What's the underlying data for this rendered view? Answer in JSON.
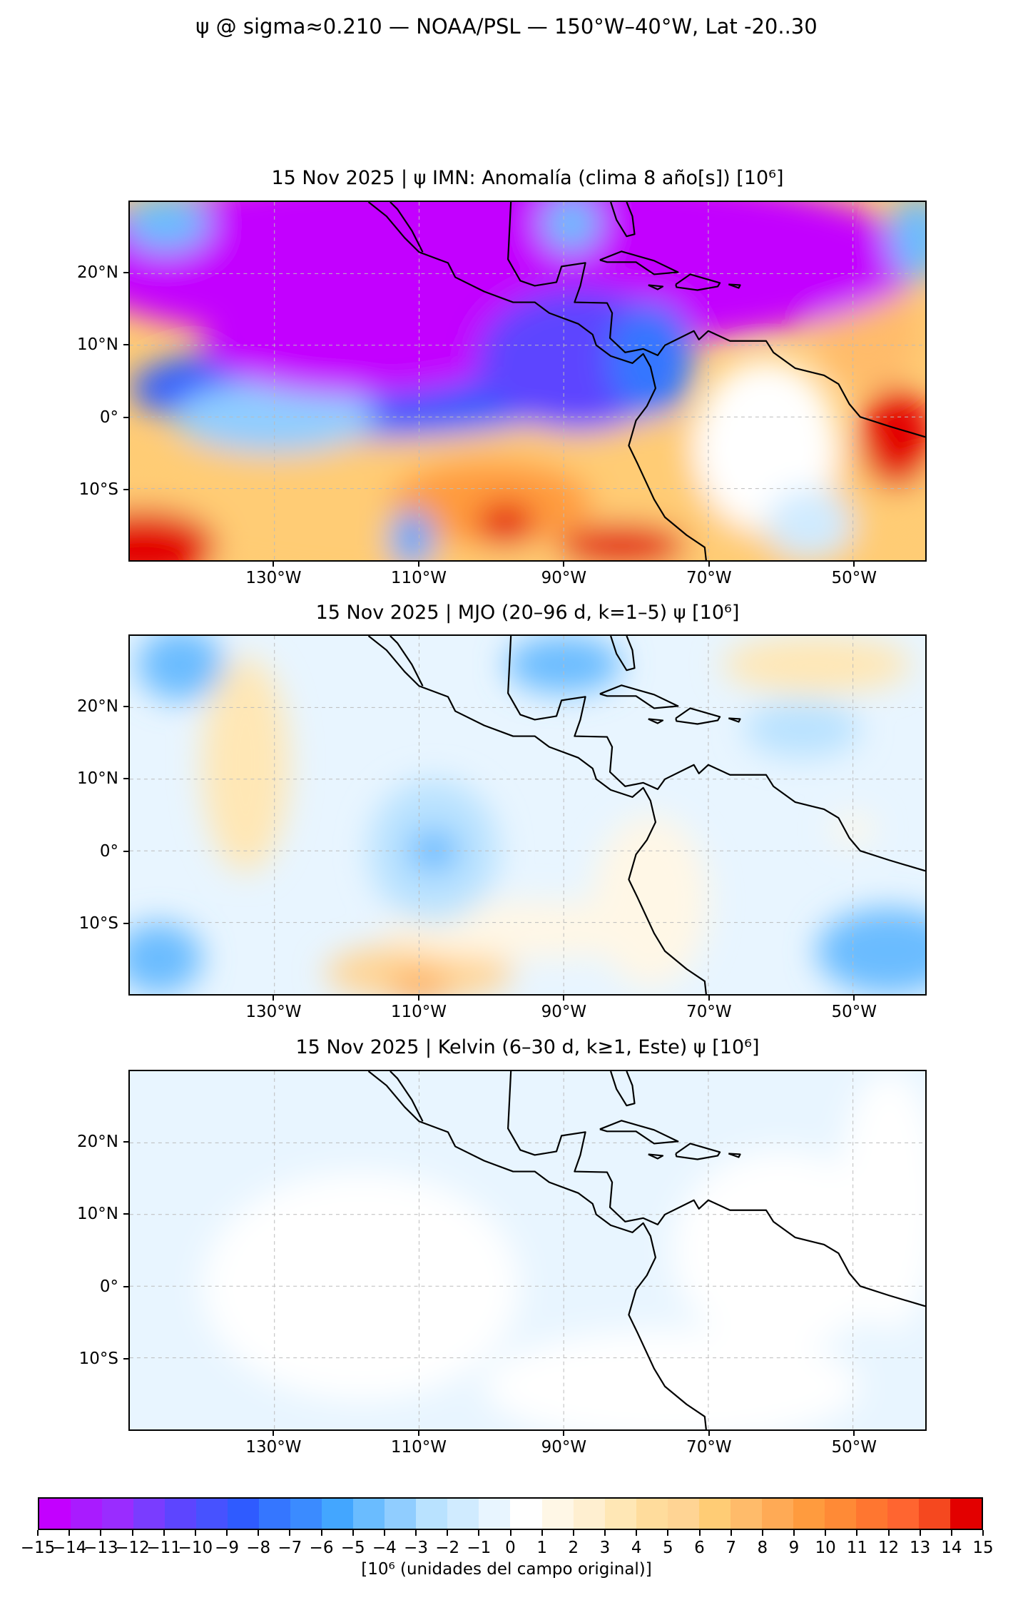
{
  "chart_data": {
    "type": "heatmap",
    "title": "ψ @ sigma≈0.210 — NOAA/PSL — 150°W–40°W, Lat -20..30",
    "xlim": [
      -150,
      -40
    ],
    "ylim": [
      -20,
      30
    ],
    "x_tick_labels": [
      "130°W",
      "110°W",
      "90°W",
      "70°W",
      "50°W"
    ],
    "x_ticks": [
      -130,
      -110,
      -90,
      -70,
      -50
    ],
    "y_tick_labels": [
      "20°N",
      "10°N",
      "0°",
      "10°S"
    ],
    "y_ticks": [
      20,
      10,
      0,
      -10
    ],
    "grid": true,
    "panels": [
      {
        "title": "15 Nov 2025 | ψ IMN: Anomalía (clima 8 año[s]) [10⁶]",
        "min_value": -15,
        "max_value": 15
      },
      {
        "title": "15 Nov 2025 | MJO (20–96 d, k=1–5) ψ [10⁶]",
        "min_value": -7,
        "max_value": 7
      },
      {
        "title": "15 Nov 2025 | Kelvin (6–30 d, k≥1, Este) ψ [10⁶]",
        "min_value": -1,
        "max_value": 0
      }
    ],
    "colorbar": {
      "label": "[10⁶ (unidades del campo original)]",
      "levels": [
        -15,
        -14,
        -13,
        -12,
        -11,
        -10,
        -9,
        -8,
        -7,
        -6,
        -5,
        -4,
        -3,
        -2,
        -1,
        0,
        1,
        2,
        3,
        4,
        5,
        6,
        7,
        8,
        9,
        10,
        11,
        12,
        13,
        14,
        15
      ],
      "tick_labels": [
        "−15",
        "−14",
        "−13",
        "−12",
        "−11",
        "−10",
        "−9",
        "−8",
        "−7",
        "−6",
        "−5",
        "−4",
        "−3",
        "−2",
        "−1",
        "0",
        "1",
        "2",
        "3",
        "4",
        "5",
        "6",
        "7",
        "8",
        "9",
        "10",
        "11",
        "12",
        "13",
        "14",
        "15"
      ],
      "colors": [
        "#c300ff",
        "#a91bff",
        "#9a2cff",
        "#7a3cff",
        "#5d45ff",
        "#4752ff",
        "#2f5bff",
        "#3576ff",
        "#3b8bff",
        "#43a6ff",
        "#6abcff",
        "#90cdff",
        "#b9e2ff",
        "#d0ebff",
        "#e8f5ff",
        "#ffffff",
        "#fff7e6",
        "#ffefd0",
        "#ffe7b5",
        "#ffdc9c",
        "#ffd494",
        "#ffcc75",
        "#ffbb6a",
        "#ffaa55",
        "#ff9b3e",
        "#ff8a36",
        "#ff7630",
        "#ff6530",
        "#f5481f",
        "#e30000"
      ]
    }
  }
}
